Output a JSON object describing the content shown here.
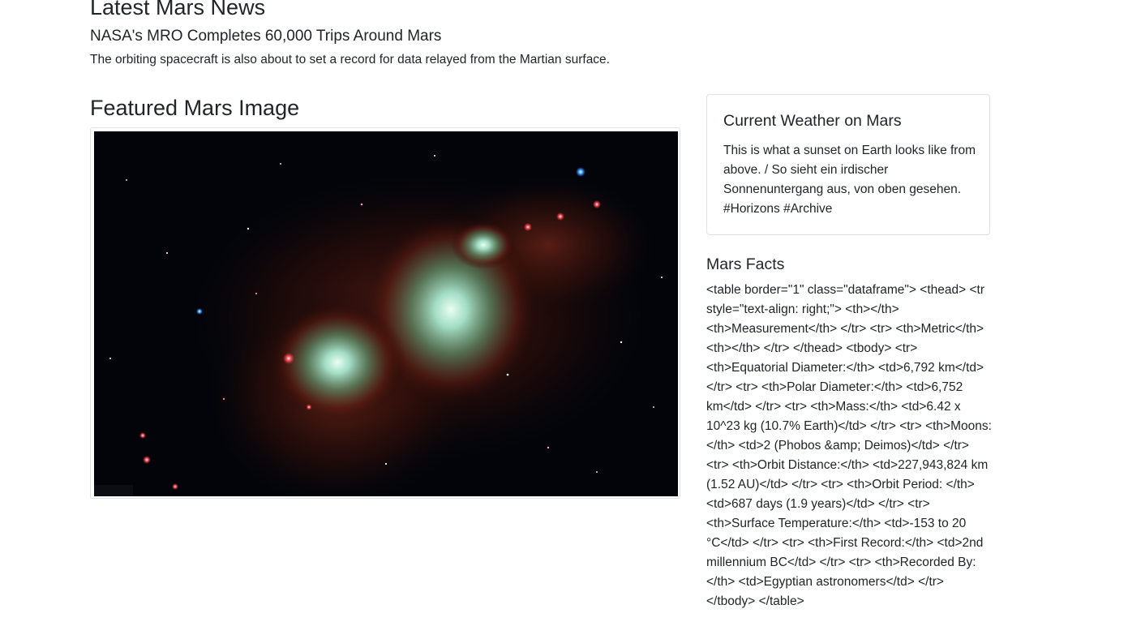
{
  "news": {
    "heading": "Latest Mars News",
    "title": "NASA's MRO Completes 60,000 Trips Around Mars",
    "teaser": "The orbiting spacecraft is also about to set a record for data relayed from the Martian surface."
  },
  "featured_image": {
    "heading": "Featured Mars Image"
  },
  "weather": {
    "title": "Current Weather on Mars",
    "text": "This is what a sunset on Earth looks like from above. / So sieht ein irdischer Sonnenuntergang aus, von oben gesehen. #Horizons #Archive"
  },
  "facts": {
    "heading": "Mars Facts",
    "html_text": "<table border=\"1\" class=\"dataframe\"> <thead> <tr style=\"text-align: right;\"> <th></th> <th>Measurement</th> </tr> <tr> <th>Metric</th> <th></th> </tr> </thead> <tbody> <tr> <th>Equatorial Diameter:</th> <td>6,792 km</td> </tr> <tr> <th>Polar Diameter:</th> <td>6,752 km</td> </tr> <tr> <th>Mass:</th> <td>6.42 x 10^23 kg (10.7% Earth)</td> </tr> <tr> <th>Moons:</th> <td>2 (Phobos &amp; Deimos)</td> </tr> <tr> <th>Orbit Distance:</th> <td>227,943,824 km (1.52 AU)</td> </tr> <tr> <th>Orbit Period: </th> <td>687 days (1.9 years)</td> </tr> <tr> <th>Surface Temperature:</th> <td>-153 to 20 °C</td> </tr> <tr> <th>First Record:</th> <td>2nd millennium BC</td> </tr> <tr> <th>Recorded By:</th> <td>Egyptian astronomers</td> </tr> </tbody> </table>"
  }
}
